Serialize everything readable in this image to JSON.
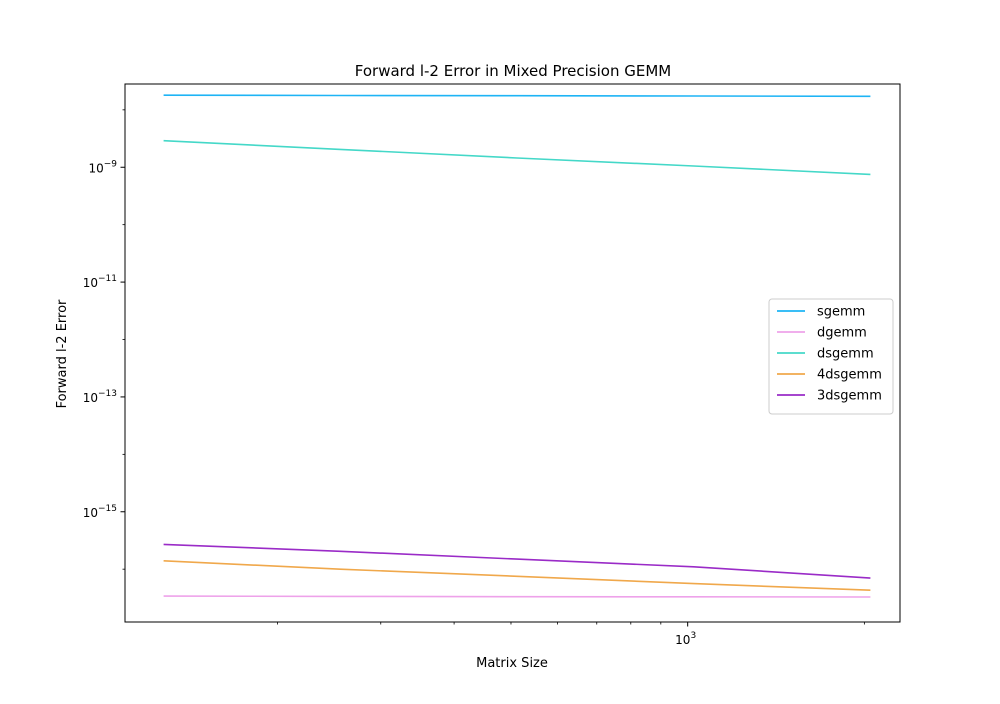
{
  "chart_data": {
    "type": "line",
    "title": "Forward l-2 Error in Mixed Precision GEMM",
    "xlabel": "Matrix Size",
    "ylabel": "Forward l-2 Error",
    "xscale": "log",
    "yscale": "log",
    "xlim": [
      110,
      2300
    ],
    "ylim_exponent": [
      -16.92,
      -7.55
    ],
    "x_ticks": [
      {
        "value": 1000,
        "base": "10",
        "exp": "3"
      }
    ],
    "y_ticks": [
      {
        "value": 1e-09,
        "base": "10",
        "exp": "−9"
      },
      {
        "value": 1e-11,
        "base": "10",
        "exp": "−11"
      },
      {
        "value": 1e-13,
        "base": "10",
        "exp": "−13"
      },
      {
        "value": 1e-15,
        "base": "10",
        "exp": "−15"
      }
    ],
    "grid": false,
    "legend_position": "center-right",
    "x": [
      128,
      256,
      512,
      1024,
      2048
    ],
    "series": [
      {
        "name": "sgemm",
        "color": "#1eb4f5",
        "values": [
          1.8e-08,
          1.78e-08,
          1.76e-08,
          1.74e-08,
          1.72e-08
        ]
      },
      {
        "name": "dgemm",
        "color": "#eea2ea",
        "values": [
          3.4e-17,
          3.35e-17,
          3.32e-17,
          3.3e-17,
          3.28e-17
        ]
      },
      {
        "name": "dsgemm",
        "color": "#44d8c8",
        "values": [
          2.9e-09,
          2.05e-09,
          1.45e-09,
          1.05e-09,
          7.5e-10
        ]
      },
      {
        "name": "4dsgemm",
        "color": "#f0a84b",
        "values": [
          1.4e-16,
          1e-16,
          7.5e-17,
          5.6e-17,
          4.3e-17
        ]
      },
      {
        "name": "3dsgemm",
        "color": "#9a2bc7",
        "values": [
          2.7e-16,
          2.05e-16,
          1.5e-16,
          1.1e-16,
          7e-17
        ]
      }
    ]
  }
}
